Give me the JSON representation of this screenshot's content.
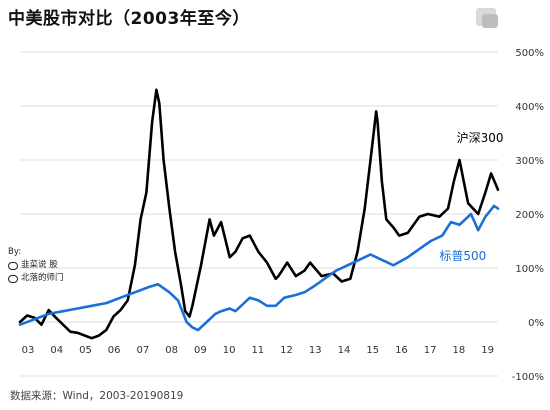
{
  "title": "中美股市对比（2003年至今）",
  "source": "数据来源：Wind，2003-20190819",
  "watermark": {
    "by": "By:",
    "line1": "韭菜说 股",
    "line2": "北落的师门"
  },
  "colors": {
    "csi300": "#000000",
    "sp500": "#1a6fd8",
    "grid": "#dddddd",
    "axis_text": "#333333"
  },
  "chart_data": {
    "type": "line",
    "title": "中美股市对比（2003年至今）",
    "xlabel": "",
    "ylabel": "",
    "x_tick_labels": [
      "03",
      "04",
      "05",
      "06",
      "07",
      "08",
      "09",
      "10",
      "11",
      "12",
      "13",
      "14",
      "15",
      "16",
      "17",
      "18",
      "19"
    ],
    "x_range": [
      2003.0,
      2019.64
    ],
    "ylim": [
      -100,
      500
    ],
    "y_tick_values": [
      -100,
      0,
      100,
      200,
      300,
      400,
      500
    ],
    "y_tick_labels": [
      "-100%",
      "0%",
      "100%",
      "200%",
      "300%",
      "400%",
      "500%"
    ],
    "y_axis_side": "right",
    "grid": "horizontal",
    "series": [
      {
        "name": "沪深300",
        "color": "#000000",
        "x": [
          2003.0,
          2003.25,
          2003.5,
          2003.75,
          2004.0,
          2004.25,
          2004.5,
          2004.75,
          2005.0,
          2005.25,
          2005.5,
          2005.75,
          2006.0,
          2006.25,
          2006.5,
          2006.75,
          2007.0,
          2007.2,
          2007.4,
          2007.6,
          2007.75,
          2007.85,
          2008.0,
          2008.2,
          2008.4,
          2008.6,
          2008.75,
          2008.9,
          2009.0,
          2009.3,
          2009.6,
          2009.75,
          2010.0,
          2010.3,
          2010.5,
          2010.75,
          2011.0,
          2011.3,
          2011.6,
          2011.9,
          2012.0,
          2012.3,
          2012.6,
          2012.9,
          2013.1,
          2013.5,
          2013.9,
          2014.2,
          2014.5,
          2014.75,
          2015.0,
          2015.2,
          2015.4,
          2015.45,
          2015.6,
          2015.75,
          2016.0,
          2016.2,
          2016.5,
          2016.9,
          2017.2,
          2017.6,
          2017.9,
          2018.1,
          2018.3,
          2018.6,
          2018.95,
          2019.2,
          2019.4,
          2019.64
        ],
        "y": [
          0,
          12,
          8,
          -5,
          22,
          8,
          -5,
          -18,
          -20,
          -25,
          -30,
          -25,
          -15,
          10,
          22,
          40,
          105,
          190,
          240,
          370,
          430,
          405,
          300,
          210,
          130,
          70,
          20,
          10,
          30,
          105,
          190,
          160,
          185,
          120,
          130,
          155,
          160,
          130,
          110,
          80,
          85,
          110,
          85,
          95,
          110,
          85,
          90,
          75,
          80,
          130,
          210,
          300,
          390,
          370,
          260,
          190,
          175,
          160,
          165,
          195,
          200,
          195,
          210,
          260,
          300,
          220,
          200,
          240,
          275,
          245
        ]
      },
      {
        "name": "标普500",
        "color": "#1a6fd8",
        "x": [
          2003.0,
          2003.5,
          2004.0,
          2004.5,
          2005.0,
          2005.5,
          2006.0,
          2006.5,
          2007.0,
          2007.5,
          2007.8,
          2008.2,
          2008.5,
          2008.8,
          2009.0,
          2009.2,
          2009.5,
          2009.8,
          2010.0,
          2010.3,
          2010.5,
          2010.8,
          2011.0,
          2011.3,
          2011.6,
          2011.9,
          2012.2,
          2012.6,
          2012.9,
          2013.2,
          2013.6,
          2014.0,
          2014.4,
          2014.8,
          2015.2,
          2015.6,
          2015.8,
          2016.0,
          2016.5,
          2016.9,
          2017.3,
          2017.7,
          2018.0,
          2018.3,
          2018.7,
          2018.95,
          2019.2,
          2019.5,
          2019.64
        ],
        "y": [
          -5,
          5,
          15,
          20,
          25,
          30,
          35,
          45,
          55,
          65,
          70,
          55,
          40,
          0,
          -10,
          -15,
          0,
          15,
          20,
          25,
          20,
          35,
          45,
          40,
          30,
          30,
          45,
          50,
          55,
          65,
          80,
          95,
          105,
          115,
          125,
          115,
          110,
          105,
          120,
          135,
          150,
          160,
          185,
          180,
          200,
          170,
          195,
          215,
          210
        ]
      }
    ],
    "annotations": [
      {
        "text": "沪深300",
        "series": "沪深300",
        "x": 2018.2,
        "y": 333
      },
      {
        "text": "标普500",
        "series": "标普500",
        "x": 2017.6,
        "y": 115
      }
    ]
  }
}
